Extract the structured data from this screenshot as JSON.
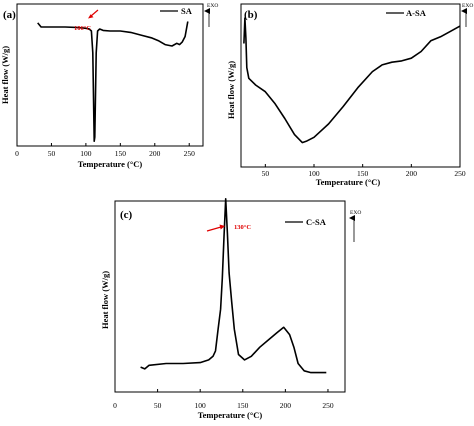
{
  "figure": {
    "accent_color": "#e00000",
    "line_color": "#000000"
  },
  "chart_data": [
    {
      "type": "line",
      "panel_label": "(a)",
      "xlabel": "Temperature (°C)",
      "ylabel": "Heat flow (W/g)",
      "xlim": [
        0,
        270
      ],
      "xticks": [
        0,
        50,
        100,
        150,
        200,
        250
      ],
      "y_ticks_shown": false,
      "exo_label": "EXO",
      "exo_direction": "up",
      "legend_position": "top-right",
      "series": [
        {
          "name": "SA",
          "x": [
            30,
            35,
            50,
            70,
            90,
            100,
            105,
            108,
            110,
            112,
            113,
            115,
            117,
            120,
            125,
            135,
            150,
            165,
            180,
            195,
            205,
            215,
            225,
            232,
            236,
            240,
            244,
            248
          ],
          "y": [
            0.92,
            0.89,
            0.89,
            0.89,
            0.885,
            0.88,
            0.875,
            0.86,
            0.7,
            0.05,
            0.08,
            0.7,
            0.86,
            0.875,
            0.865,
            0.86,
            0.86,
            0.85,
            0.83,
            0.81,
            0.79,
            0.76,
            0.75,
            0.77,
            0.76,
            0.78,
            0.82,
            0.93
          ]
        }
      ],
      "annotations": [
        {
          "text": "106°C",
          "x": 106,
          "color": "#e00000"
        }
      ]
    },
    {
      "type": "line",
      "panel_label": "(b)",
      "xlabel": "Temperature (°C)",
      "ylabel": "Heat flow (W/g)",
      "xlim": [
        25,
        250
      ],
      "xticks": [
        50,
        100,
        150,
        200,
        250
      ],
      "y_ticks_shown": false,
      "exo_label": "EXO",
      "exo_direction": "up",
      "legend_position": "top-right",
      "series": [
        {
          "name": "A-SA",
          "x": [
            28,
            29,
            30,
            31,
            33,
            40,
            50,
            60,
            70,
            80,
            88,
            92,
            100,
            115,
            130,
            145,
            160,
            170,
            180,
            190,
            200,
            210,
            220,
            230,
            240,
            250
          ],
          "y": [
            0.78,
            0.97,
            0.82,
            0.6,
            0.52,
            0.47,
            0.42,
            0.33,
            0.22,
            0.1,
            0.04,
            0.05,
            0.08,
            0.18,
            0.31,
            0.45,
            0.57,
            0.62,
            0.64,
            0.65,
            0.67,
            0.72,
            0.8,
            0.83,
            0.87,
            0.91
          ]
        }
      ]
    },
    {
      "type": "line",
      "panel_label": "(c)",
      "xlabel": "Temperature (°C)",
      "ylabel": "Heat flow (W/g)",
      "xlim": [
        0,
        270
      ],
      "xticks": [
        0,
        50,
        100,
        150,
        200,
        250
      ],
      "y_ticks_shown": false,
      "exo_label": "EXO",
      "exo_direction": "up",
      "legend_position": "top-right",
      "series": [
        {
          "name": "C-SA",
          "x": [
            30,
            35,
            40,
            60,
            80,
            100,
            110,
            115,
            118,
            121,
            124,
            126,
            128,
            130,
            132,
            134,
            137,
            140,
            145,
            152,
            160,
            170,
            180,
            190,
            198,
            205,
            210,
            215,
            222,
            230,
            240,
            248
          ],
          "y": [
            0.06,
            0.05,
            0.07,
            0.08,
            0.08,
            0.085,
            0.1,
            0.12,
            0.15,
            0.27,
            0.38,
            0.55,
            0.78,
            0.99,
            0.8,
            0.58,
            0.42,
            0.27,
            0.13,
            0.1,
            0.12,
            0.17,
            0.21,
            0.25,
            0.28,
            0.24,
            0.17,
            0.08,
            0.04,
            0.03,
            0.03,
            0.03
          ]
        }
      ],
      "annotations": [
        {
          "text": "130°C",
          "x": 130,
          "color": "#e00000"
        }
      ]
    }
  ]
}
